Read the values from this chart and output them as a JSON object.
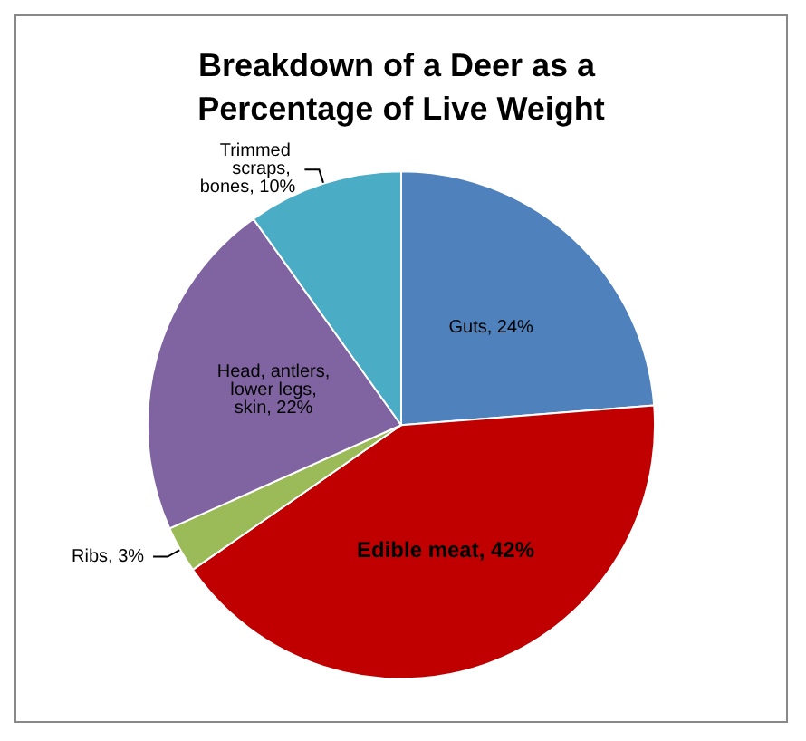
{
  "chart_data": {
    "type": "pie",
    "title": "Breakdown of a Deer as a Percentage of Live Weight",
    "categories": [
      "Guts",
      "Edible meat",
      "Ribs",
      "Head, antlers, lower legs, skin",
      "Trimmed scraps, bones"
    ],
    "values": [
      24,
      42,
      3,
      22,
      10
    ],
    "value_labels": [
      "24%",
      "42%",
      "3%",
      "22%",
      "10%"
    ],
    "colors": [
      "#4f81bd",
      "#c00000",
      "#9bbb59",
      "#8064a2",
      "#4bacc6"
    ],
    "legend": false
  }
}
